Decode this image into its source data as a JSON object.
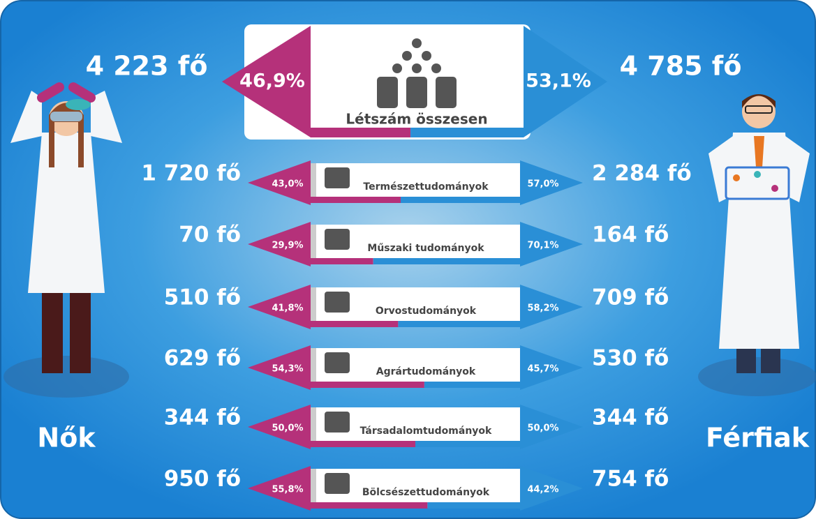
{
  "women": {
    "label": "Nők",
    "count": "4 223 fő"
  },
  "men": {
    "label": "Férfiak",
    "count": "4 785 fő"
  },
  "total": {
    "title": "Létszám összesen",
    "female_share": 46.9,
    "female_share_label": "46,9%",
    "male_share": 53.1,
    "male_share_label": "53,1%"
  },
  "rows": [
    {
      "title": "Természettudományok",
      "female_count": "1 720 fő",
      "male_count": "2 284 fő",
      "female_share": 43.0,
      "female_share_label": "43,0%",
      "male_share": 57.0,
      "male_share_label": "57,0%"
    },
    {
      "title": "Műszaki tudományok",
      "female_count": "70 fő",
      "male_count": "164 fő",
      "female_share": 29.9,
      "female_share_label": "29,9%",
      "male_share": 70.1,
      "male_share_label": "70,1%"
    },
    {
      "title": "Orvostudományok",
      "female_count": "510 fő",
      "male_count": "709 fő",
      "female_share": 41.8,
      "female_share_label": "41,8%",
      "male_share": 58.2,
      "male_share_label": "58,2%"
    },
    {
      "title": "Agrártudományok",
      "female_count": "629 fő",
      "male_count": "530 fő",
      "female_share": 54.3,
      "female_share_label": "54,3%",
      "male_share": 45.7,
      "male_share_label": "45,7%"
    },
    {
      "title": "Társadalomtudományok",
      "female_count": "344 fő",
      "male_count": "344 fő",
      "female_share": 50.0,
      "female_share_label": "50,0%",
      "male_share": 50.0,
      "male_share_label": "50,0%"
    },
    {
      "title": "Bölcsészettudományok",
      "female_count": "950 fő",
      "male_count": "754 fő",
      "female_share": 55.8,
      "female_share_label": "55,8%",
      "male_share": 44.2,
      "male_share_label": "44,2%"
    }
  ]
}
